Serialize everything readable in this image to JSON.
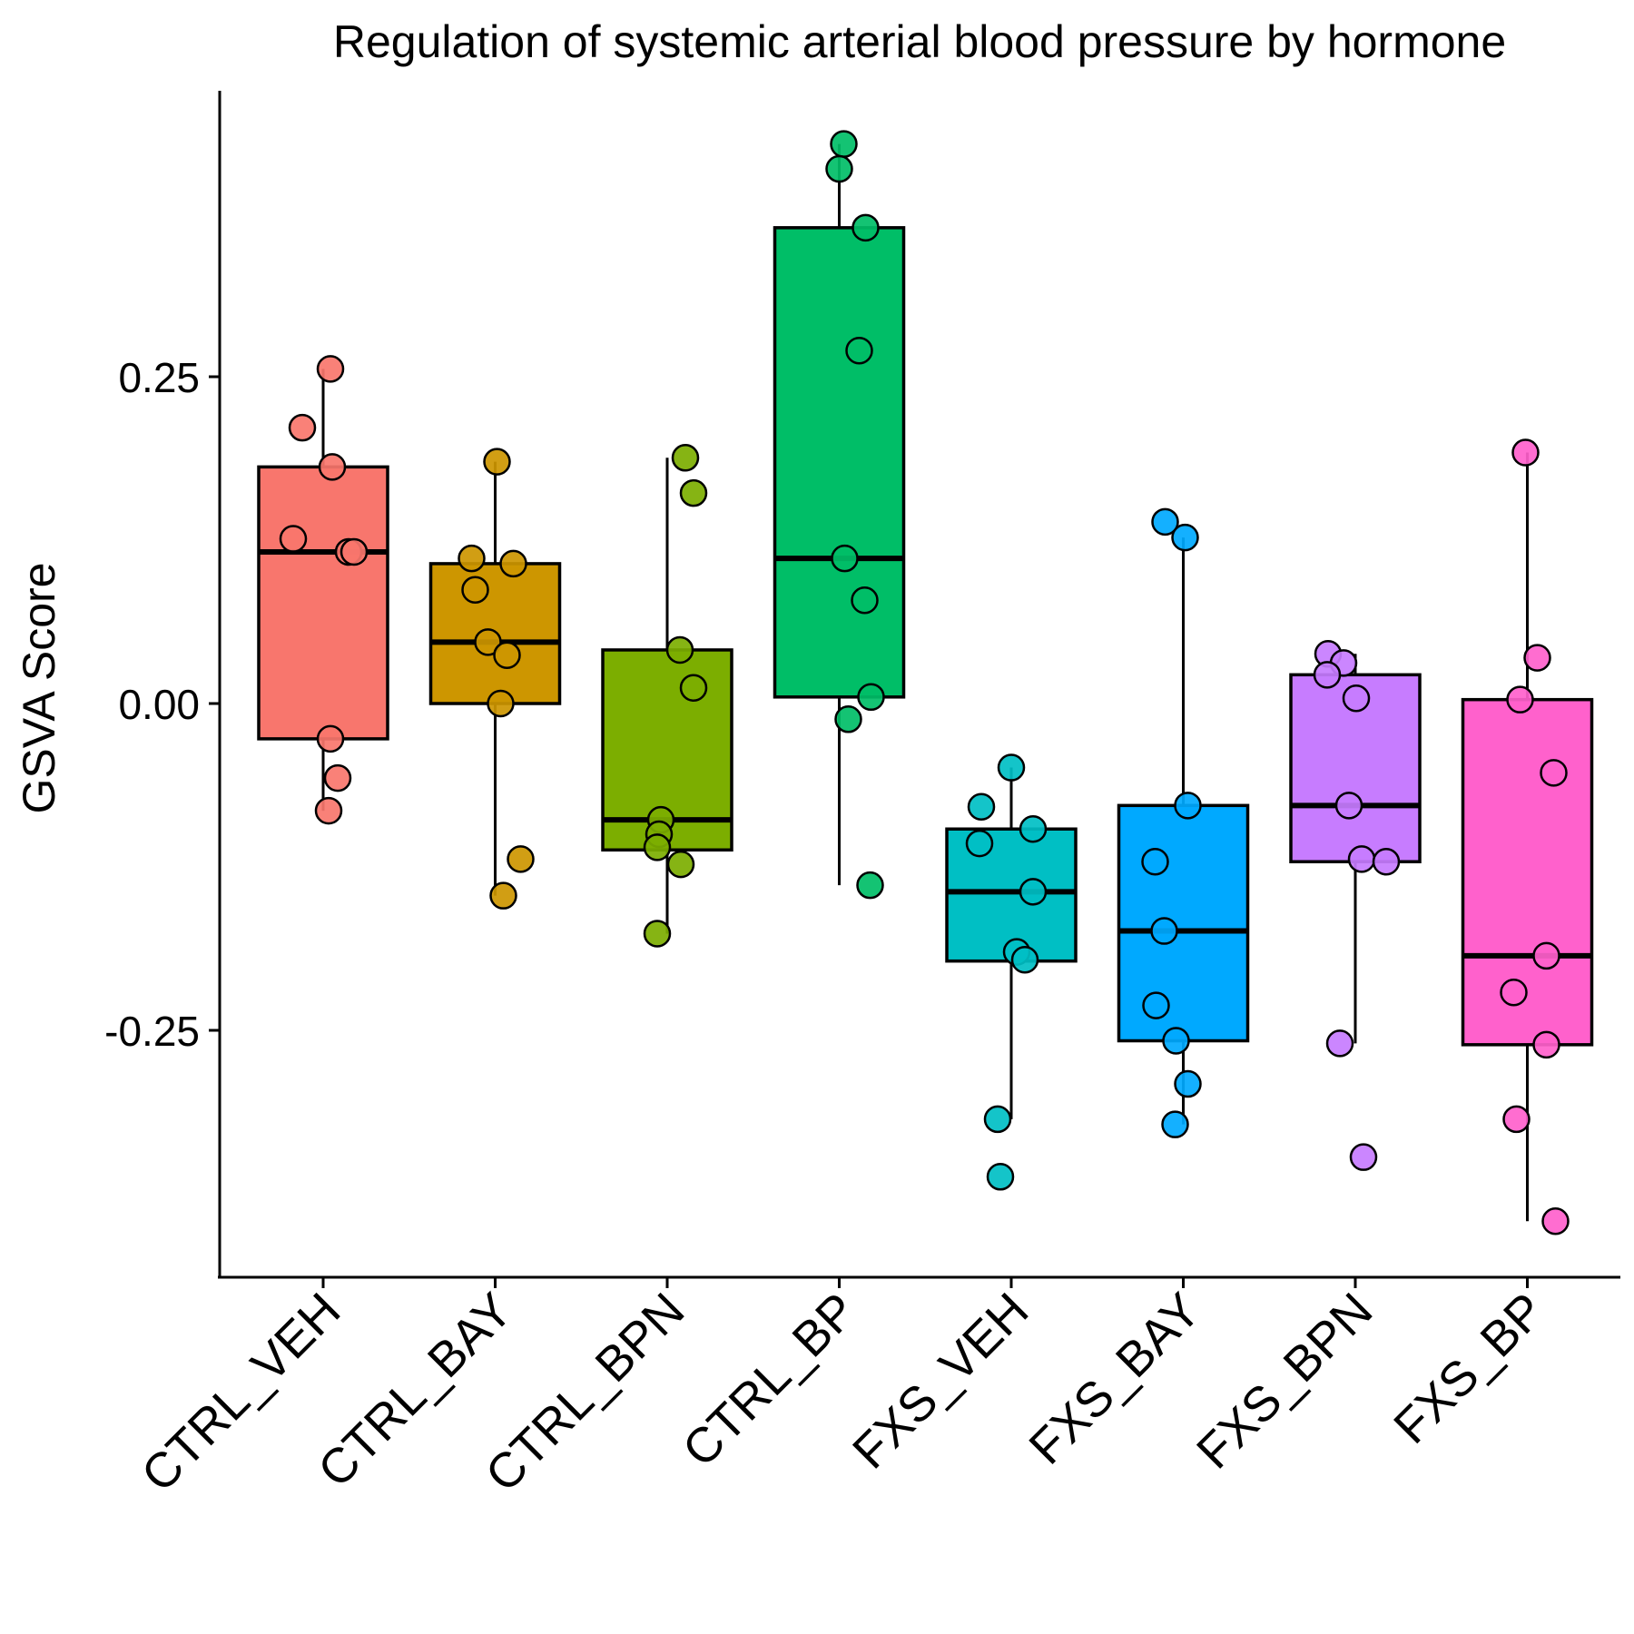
{
  "chart_data": {
    "type": "box",
    "title": "Regulation of systemic arterial blood pressure by hormone",
    "xlabel": "",
    "ylabel": "GSVA Score",
    "ylim": [
      -0.44,
      0.47
    ],
    "yticks": [
      0.25,
      0.0,
      -0.25
    ],
    "ytick_labels": [
      "0.25",
      "0.00",
      "-0.25"
    ],
    "grid": false,
    "legend": "none",
    "groups": [
      {
        "name": "CTRL_VEH",
        "color": "#F8766D",
        "box": {
          "q1": -0.027,
          "median": 0.116,
          "q3": 0.181,
          "whisker_low": -0.082,
          "whisker_high": 0.256
        },
        "points": [
          0.256,
          0.211,
          0.181,
          0.126,
          0.116,
          0.116,
          -0.027,
          -0.057,
          -0.082
        ]
      },
      {
        "name": "CTRL_BAY",
        "color": "#CD9600",
        "box": {
          "q1": 0.0,
          "median": 0.047,
          "q3": 0.107,
          "whisker_low": -0.147,
          "whisker_high": 0.185
        },
        "points": [
          0.185,
          0.111,
          0.107,
          0.087,
          0.047,
          0.037,
          0.0,
          -0.119,
          -0.147
        ]
      },
      {
        "name": "CTRL_BPN",
        "color": "#7CAE00",
        "box": {
          "q1": -0.112,
          "median": -0.089,
          "q3": 0.041,
          "whisker_low": -0.176,
          "whisker_high": 0.188
        },
        "points": [
          0.188,
          0.161,
          0.041,
          0.012,
          -0.089,
          -0.1,
          -0.11,
          -0.123,
          -0.176
        ]
      },
      {
        "name": "CTRL_BP",
        "color": "#00BE67",
        "box": {
          "q1": 0.005,
          "median": 0.111,
          "q3": 0.364,
          "whisker_low": -0.139,
          "whisker_high": 0.428
        },
        "points": [
          0.428,
          0.409,
          0.364,
          0.27,
          0.111,
          0.079,
          0.005,
          -0.012,
          -0.139
        ]
      },
      {
        "name": "FXS_VEH",
        "color": "#00BFC4",
        "box": {
          "q1": -0.197,
          "median": -0.144,
          "q3": -0.096,
          "whisker_low": -0.318,
          "whisker_high": -0.049
        },
        "points": [
          -0.049,
          -0.079,
          -0.096,
          -0.107,
          -0.144,
          -0.19,
          -0.196,
          -0.318,
          -0.362
        ]
      },
      {
        "name": "FXS_BAY",
        "color": "#00A9FF",
        "box": {
          "q1": -0.258,
          "median": -0.174,
          "q3": -0.078,
          "whisker_low": -0.322,
          "whisker_high": 0.127
        },
        "points": [
          0.139,
          0.127,
          -0.078,
          -0.121,
          -0.174,
          -0.231,
          -0.258,
          -0.291,
          -0.322
        ]
      },
      {
        "name": "FXS_BPN",
        "color": "#C77CFF",
        "box": {
          "q1": -0.121,
          "median": -0.078,
          "q3": 0.022,
          "whisker_low": -0.26,
          "whisker_high": 0.038
        },
        "points": [
          0.038,
          0.031,
          0.022,
          0.004,
          -0.078,
          -0.119,
          -0.121,
          -0.26,
          -0.347
        ]
      },
      {
        "name": "FXS_BP",
        "color": "#FF61CC",
        "box": {
          "q1": -0.261,
          "median": -0.193,
          "q3": 0.003,
          "whisker_low": -0.396,
          "whisker_high": 0.192
        },
        "points": [
          0.192,
          0.035,
          0.003,
          -0.053,
          -0.193,
          -0.221,
          -0.261,
          -0.318,
          -0.396
        ]
      }
    ]
  }
}
